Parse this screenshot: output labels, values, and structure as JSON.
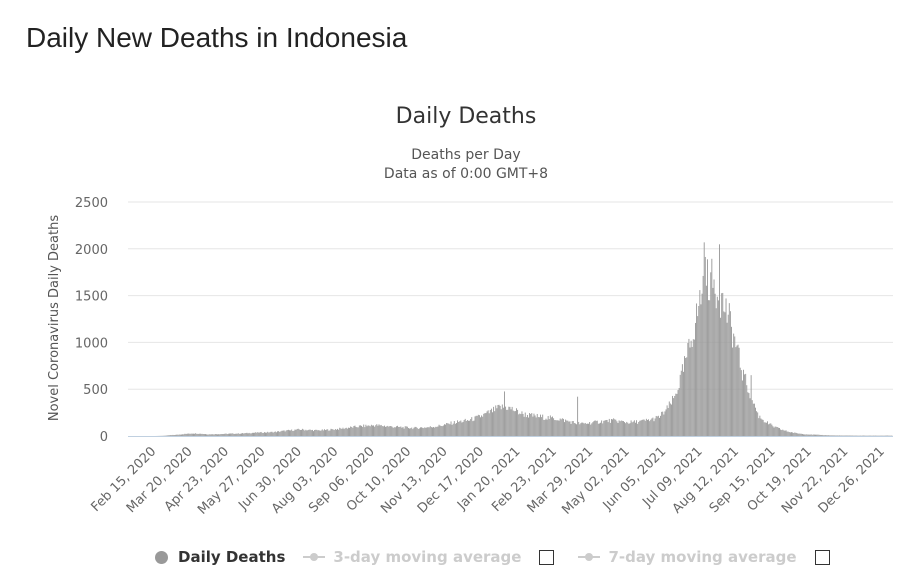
{
  "page": {
    "heading": "Daily New Deaths in Indonesia"
  },
  "legend": {
    "items": [
      {
        "label": "Daily Deaths",
        "active": true
      },
      {
        "label": "3-day moving average",
        "active": false
      },
      {
        "label": "7-day moving average",
        "active": false
      }
    ]
  },
  "colors": {
    "bars": "#999999",
    "grid": "#e6e6e6",
    "axis": "#c0d0e0",
    "text": "#666666"
  },
  "chart_data": {
    "type": "bar",
    "title": "Daily Deaths",
    "subtitle_lines": [
      "Deaths per Day",
      "Data as of 0:00 GMT+8"
    ],
    "ylabel": "Novel Coronavirus Daily Deaths",
    "ylim": [
      0,
      2500
    ],
    "yticks": [
      0,
      500,
      1000,
      1500,
      2000,
      2500
    ],
    "xlabel": "",
    "x_tick_labels": [
      "Feb 15, 2020",
      "Mar 20, 2020",
      "Apr 23, 2020",
      "May 27, 2020",
      "Jun 30, 2020",
      "Aug 03, 2020",
      "Sep 06, 2020",
      "Oct 10, 2020",
      "Nov 13, 2020",
      "Dec 17, 2020",
      "Jan 20, 2021",
      "Feb 23, 2021",
      "Mar 29, 2021",
      "May 02, 2021",
      "Jun 05, 2021",
      "Jul 09, 2021",
      "Aug 12, 2021",
      "Sep 15, 2021",
      "Oct 19, 2021",
      "Nov 22, 2021",
      "Dec 26, 2021"
    ],
    "x_range": [
      "2020-02-15",
      "2022-01-16"
    ],
    "grid": true,
    "legend_position": "bottom",
    "series": [
      {
        "name": "Daily Deaths",
        "weekly_average_values": [
          {
            "week_start": "2020-02-15",
            "value": 0
          },
          {
            "week_start": "2020-02-22",
            "value": 0
          },
          {
            "week_start": "2020-02-29",
            "value": 0
          },
          {
            "week_start": "2020-03-07",
            "value": 0
          },
          {
            "week_start": "2020-03-14",
            "value": 2
          },
          {
            "week_start": "2020-03-21",
            "value": 8
          },
          {
            "week_start": "2020-03-28",
            "value": 14
          },
          {
            "week_start": "2020-04-04",
            "value": 22
          },
          {
            "week_start": "2020-04-11",
            "value": 28
          },
          {
            "week_start": "2020-04-18",
            "value": 25
          },
          {
            "week_start": "2020-04-25",
            "value": 18
          },
          {
            "week_start": "2020-05-02",
            "value": 20
          },
          {
            "week_start": "2020-05-09",
            "value": 22
          },
          {
            "week_start": "2020-05-16",
            "value": 25
          },
          {
            "week_start": "2020-05-23",
            "value": 26
          },
          {
            "week_start": "2020-05-30",
            "value": 30
          },
          {
            "week_start": "2020-06-06",
            "value": 35
          },
          {
            "week_start": "2020-06-13",
            "value": 38
          },
          {
            "week_start": "2020-06-20",
            "value": 40
          },
          {
            "week_start": "2020-06-27",
            "value": 45
          },
          {
            "week_start": "2020-07-04",
            "value": 55
          },
          {
            "week_start": "2020-07-11",
            "value": 62
          },
          {
            "week_start": "2020-07-18",
            "value": 70
          },
          {
            "week_start": "2020-07-25",
            "value": 65
          },
          {
            "week_start": "2020-08-01",
            "value": 60
          },
          {
            "week_start": "2020-08-08",
            "value": 62
          },
          {
            "week_start": "2020-08-15",
            "value": 68
          },
          {
            "week_start": "2020-08-22",
            "value": 75
          },
          {
            "week_start": "2020-08-29",
            "value": 85
          },
          {
            "week_start": "2020-09-05",
            "value": 95
          },
          {
            "week_start": "2020-09-12",
            "value": 105
          },
          {
            "week_start": "2020-09-19",
            "value": 110
          },
          {
            "week_start": "2020-09-26",
            "value": 115
          },
          {
            "week_start": "2020-10-03",
            "value": 108
          },
          {
            "week_start": "2020-10-10",
            "value": 100
          },
          {
            "week_start": "2020-10-17",
            "value": 95
          },
          {
            "week_start": "2020-10-24",
            "value": 90
          },
          {
            "week_start": "2020-10-31",
            "value": 85
          },
          {
            "week_start": "2020-11-07",
            "value": 90
          },
          {
            "week_start": "2020-11-14",
            "value": 95
          },
          {
            "week_start": "2020-11-21",
            "value": 105
          },
          {
            "week_start": "2020-11-28",
            "value": 120
          },
          {
            "week_start": "2020-12-05",
            "value": 140
          },
          {
            "week_start": "2020-12-12",
            "value": 155
          },
          {
            "week_start": "2020-12-19",
            "value": 165
          },
          {
            "week_start": "2020-12-26",
            "value": 190
          },
          {
            "week_start": "2021-01-02",
            "value": 220
          },
          {
            "week_start": "2021-01-09",
            "value": 260
          },
          {
            "week_start": "2021-01-16",
            "value": 300
          },
          {
            "week_start": "2021-01-23",
            "value": 310
          },
          {
            "week_start": "2021-01-30",
            "value": 280
          },
          {
            "week_start": "2021-02-06",
            "value": 240
          },
          {
            "week_start": "2021-02-13",
            "value": 220
          },
          {
            "week_start": "2021-02-20",
            "value": 210
          },
          {
            "week_start": "2021-02-27",
            "value": 200
          },
          {
            "week_start": "2021-03-06",
            "value": 190
          },
          {
            "week_start": "2021-03-13",
            "value": 180
          },
          {
            "week_start": "2021-03-20",
            "value": 160
          },
          {
            "week_start": "2021-03-27",
            "value": 140
          },
          {
            "week_start": "2021-04-03",
            "value": 130
          },
          {
            "week_start": "2021-04-10",
            "value": 140
          },
          {
            "week_start": "2021-04-17",
            "value": 150
          },
          {
            "week_start": "2021-04-24",
            "value": 160
          },
          {
            "week_start": "2021-05-01",
            "value": 165
          },
          {
            "week_start": "2021-05-08",
            "value": 155
          },
          {
            "week_start": "2021-05-15",
            "value": 145
          },
          {
            "week_start": "2021-05-22",
            "value": 150
          },
          {
            "week_start": "2021-05-29",
            "value": 160
          },
          {
            "week_start": "2021-06-05",
            "value": 175
          },
          {
            "week_start": "2021-06-12",
            "value": 200
          },
          {
            "week_start": "2021-06-19",
            "value": 280
          },
          {
            "week_start": "2021-06-26",
            "value": 400
          },
          {
            "week_start": "2021-07-03",
            "value": 650
          },
          {
            "week_start": "2021-07-10",
            "value": 950
          },
          {
            "week_start": "2021-07-17",
            "value": 1300
          },
          {
            "week_start": "2021-07-24",
            "value": 1700
          },
          {
            "week_start": "2021-07-31",
            "value": 1650
          },
          {
            "week_start": "2021-08-07",
            "value": 1500
          },
          {
            "week_start": "2021-08-14",
            "value": 1300
          },
          {
            "week_start": "2021-08-21",
            "value": 1000
          },
          {
            "week_start": "2021-08-28",
            "value": 650
          },
          {
            "week_start": "2021-09-04",
            "value": 450
          },
          {
            "week_start": "2021-09-11",
            "value": 220
          },
          {
            "week_start": "2021-09-18",
            "value": 150
          },
          {
            "week_start": "2021-09-25",
            "value": 100
          },
          {
            "week_start": "2021-10-02",
            "value": 70
          },
          {
            "week_start": "2021-10-09",
            "value": 45
          },
          {
            "week_start": "2021-10-16",
            "value": 30
          },
          {
            "week_start": "2021-10-23",
            "value": 20
          },
          {
            "week_start": "2021-10-30",
            "value": 15
          },
          {
            "week_start": "2021-11-06",
            "value": 12
          },
          {
            "week_start": "2021-11-13",
            "value": 8
          },
          {
            "week_start": "2021-11-20",
            "value": 6
          },
          {
            "week_start": "2021-11-27",
            "value": 5
          },
          {
            "week_start": "2021-12-04",
            "value": 5
          },
          {
            "week_start": "2021-12-11",
            "value": 4
          },
          {
            "week_start": "2021-12-18",
            "value": 4
          },
          {
            "week_start": "2021-12-25",
            "value": 4
          },
          {
            "week_start": "2022-01-01",
            "value": 4
          },
          {
            "week_start": "2022-01-08",
            "value": 4
          }
        ],
        "notable_points": [
          {
            "date": "2021-01-25",
            "value": 476
          },
          {
            "date": "2021-04-02",
            "value": 420
          },
          {
            "date": "2021-07-27",
            "value": 2069
          },
          {
            "date": "2021-08-10",
            "value": 2048
          },
          {
            "date": "2021-09-02",
            "value": 658
          },
          {
            "date": "2021-09-08",
            "value": 650
          }
        ]
      }
    ]
  }
}
